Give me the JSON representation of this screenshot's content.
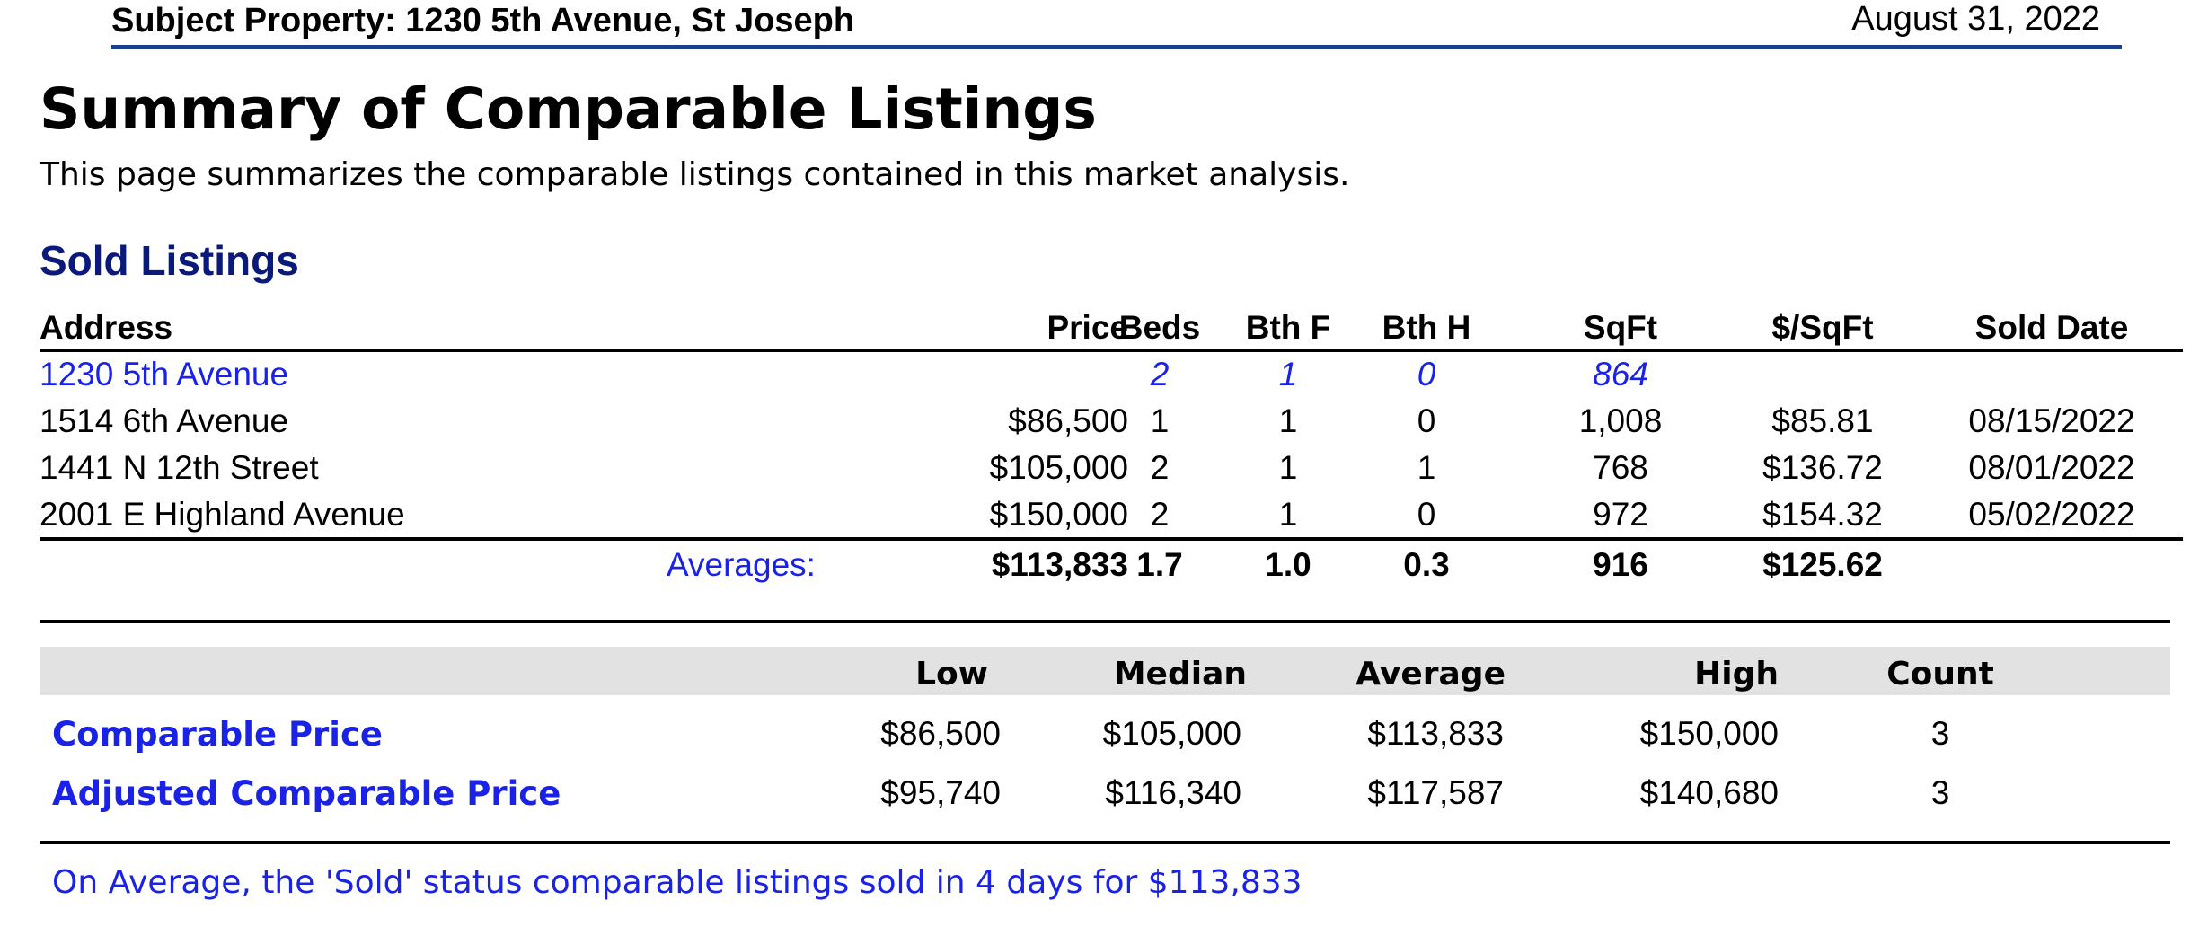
{
  "header": {
    "subject": "Subject Property: 1230 5th Avenue, St Joseph",
    "date": "August 31, 2022"
  },
  "title": "Summary of Comparable Listings",
  "description": "This page summarizes the comparable listings contained in this market analysis.",
  "section_title": "Sold Listings",
  "sold_table": {
    "columns": [
      "Address",
      "Price",
      "Beds",
      "Bth F",
      "Bth H",
      "SqFt",
      "$/SqFt",
      "Sold Date"
    ],
    "subject_row": {
      "address": "1230 5th Avenue",
      "price": "",
      "beds": "2",
      "bthf": "1",
      "bthh": "0",
      "sqft": "864",
      "psf": "",
      "sold": ""
    },
    "rows": [
      {
        "address": "1514 6th Avenue",
        "price": "$86,500",
        "beds": "1",
        "bthf": "1",
        "bthh": "0",
        "sqft": "1,008",
        "psf": "$85.81",
        "sold": "08/15/2022"
      },
      {
        "address": "1441 N 12th Street",
        "price": "$105,000",
        "beds": "2",
        "bthf": "1",
        "bthh": "1",
        "sqft": "768",
        "psf": "$136.72",
        "sold": "08/01/2022"
      },
      {
        "address": "2001 E Highland Avenue",
        "price": "$150,000",
        "beds": "2",
        "bthf": "1",
        "bthh": "0",
        "sqft": "972",
        "psf": "$154.32",
        "sold": "05/02/2022"
      }
    ],
    "averages": {
      "label": "Averages:",
      "price": "$113,833",
      "beds": "1.7",
      "bthf": "1.0",
      "bthh": "0.3",
      "sqft": "916",
      "psf": "$125.62"
    }
  },
  "summary": {
    "columns": [
      "Low",
      "Median",
      "Average",
      "High",
      "Count"
    ],
    "rows": [
      {
        "label": "Comparable Price",
        "low": "$86,500",
        "median": "$105,000",
        "average": "$113,833",
        "high": "$150,000",
        "count": "3"
      },
      {
        "label": "Adjusted Comparable Price",
        "low": "$95,740",
        "median": "$116,340",
        "average": "$117,587",
        "high": "$140,680",
        "count": "3"
      }
    ]
  },
  "footnote": "On Average, the 'Sold' status comparable listings sold in 4 days for $113,833",
  "colors": {
    "header_rule": "#1c3f8f",
    "link_blue": "#1a22e6",
    "section_navy": "#0a1a7a",
    "summary_header_bg": "#e2e2e2"
  }
}
